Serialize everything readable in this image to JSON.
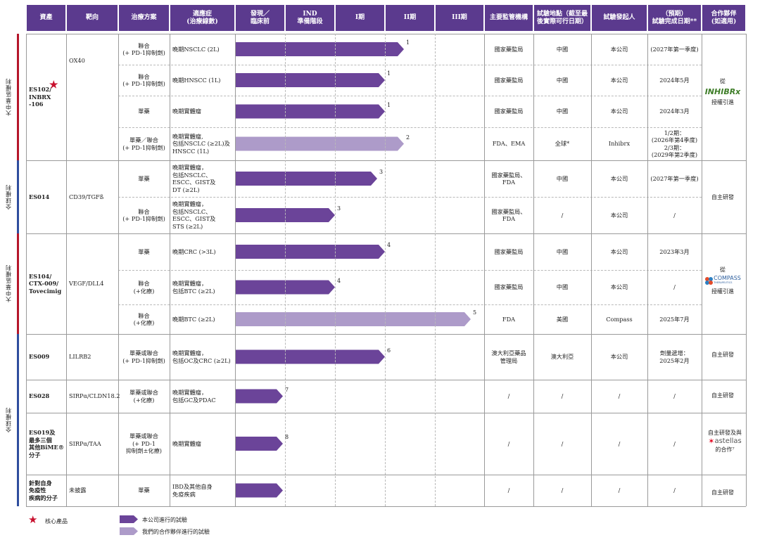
{
  "headers": [
    "資產",
    "靶向",
    "治療方案",
    "適應症\n(治療線數)",
    "發現／\n臨床前",
    "IND\n準備階段",
    "I期",
    "II期",
    "III期",
    "主要監管機構",
    "試驗地點（截至最\n後實際可行日期）",
    "試驗發起人",
    "（預期）\n試驗完成日期**",
    "合作夥伴\n(如適用)"
  ],
  "region_labels": [
    "大中華區權利",
    "全球權利",
    "大中華區權利",
    "全球權利"
  ],
  "assets": [
    {
      "name": "ES102/\nINBRX\n-106",
      "target": "OX40",
      "core": true
    },
    {
      "name": "ES014",
      "target": "CD39/TGFß",
      "core": false
    },
    {
      "name": "ES104/\nCTX-009/\nTovecimig",
      "target": "VEGF/DLL4",
      "core": false
    },
    {
      "name": "ES009",
      "target": "LILRB2",
      "core": false
    },
    {
      "name": "ES028",
      "target": "SIRPα/CLDN18.2",
      "core": false
    },
    {
      "name": "ES019及\n最多三個\n其他BiME®\n分子",
      "target": "SIRPα/TAA",
      "core": false
    },
    {
      "name": "針對自身\n免疫性\n疾病的分子",
      "target": "未披露",
      "core": false
    }
  ],
  "rows": [
    {
      "regimen": "聯合\n(+ PD-1抑制劑)",
      "indication": "晚期NSCLC (2L)",
      "note": "1",
      "regulator": "國家藥監局",
      "location": "中國",
      "sponsor": "本公司",
      "completion": "(2027年第一季度)"
    },
    {
      "regimen": "聯合\n(+ PD-1抑制劑)",
      "indication": "晚期HNSCC (1L)",
      "note": "1",
      "regulator": "國家藥監局",
      "location": "中國",
      "sponsor": "本公司",
      "completion": "2024年5月"
    },
    {
      "regimen": "單藥",
      "indication": "晚期實體瘤",
      "note": "1",
      "regulator": "國家藥監局",
      "location": "中國",
      "sponsor": "本公司",
      "completion": "2024年3月"
    },
    {
      "regimen": "單藥／聯合\n(+ PD-1抑制劑)",
      "indication": "晚期實體瘤,\n包括NSCLC (≥2L)及\nHNSCC (1L)",
      "note": "2",
      "regulator": "FDA、EMA",
      "location": "全球*",
      "sponsor": "Inhibrx",
      "completion": "1/2期：\n(2026年第4季度)\n2/3期：\n(2029年第2季度)"
    },
    {
      "regimen": "單藥",
      "indication": "晚期實體瘤，\n包括NSCLC、\nESCC、GIST及\nDT (≥2L)",
      "note": "3",
      "regulator": "國家藥監局、\nFDA",
      "location": "中國",
      "sponsor": "本公司",
      "completion": "(2027年第一季度)"
    },
    {
      "regimen": "聯合\n(+ PD-1抑制劑)",
      "indication": "晚期實體瘤，\n包括NSCLC、\nESCC、GIST及\nSTS (≥2L)",
      "note": "3",
      "regulator": "國家藥監局、\nFDA",
      "location": "/",
      "sponsor": "本公司",
      "completion": "/"
    },
    {
      "regimen": "單藥",
      "indication": "晚期CRC (>3L)",
      "note": "4",
      "regulator": "國家藥監局",
      "location": "中國",
      "sponsor": "本公司",
      "completion": "2023年3月"
    },
    {
      "regimen": "聯合\n(+化療)",
      "indication": "晚期實體瘤，\n包括BTC (≥2L)",
      "note": "4",
      "regulator": "國家藥監局",
      "location": "中國",
      "sponsor": "本公司",
      "completion": "/"
    },
    {
      "regimen": "聯合\n(+化療)",
      "indication": "晚期BTC (≥2L)",
      "note": "5",
      "regulator": "FDA",
      "location": "美國",
      "sponsor": "Compass",
      "completion": "2025年7月"
    },
    {
      "regimen": "單藥或聯合\n(+ PD-1抑制劑)",
      "indication": "晚期實體瘤，\n包括OC及CRC (≥2L)",
      "note": "6",
      "regulator": "澳大利亞藥品\n管理局",
      "location": "澳大利亞",
      "sponsor": "本公司",
      "completion": "劑量遞增：\n2025年2月"
    },
    {
      "regimen": "單藥或聯合\n(+化療)",
      "indication": "晚期實體瘤，\n包括GC及PDAC",
      "note": "7",
      "regulator": "/",
      "location": "/",
      "sponsor": "/",
      "completion": "/"
    },
    {
      "regimen": "單藥或聯合\n(+ PD-1\n抑制劑±化療)",
      "indication": "晚期實體瘤",
      "note": "8",
      "regulator": "/",
      "location": "/",
      "sponsor": "/",
      "completion": "/"
    },
    {
      "regimen": "單藥",
      "indication": "IBD及其他自身\n免疫疾病",
      "note": "",
      "regulator": "/",
      "location": "/",
      "sponsor": "/",
      "completion": "/"
    }
  ],
  "partners": {
    "inhibrx": {
      "prefix": "從",
      "logo": "INHIBRx",
      "suffix": "授權引進"
    },
    "es014": "自主研發",
    "compass": {
      "prefix": "從",
      "logo": "COMPASS",
      "logo_sub": "THERAPEUTICS",
      "suffix": "授權引進"
    },
    "es009": "自主研發",
    "es028": "自主研發",
    "astellas": {
      "prefix": "自主研發及與",
      "logo": "astellas",
      "suffix": "的合作⁷"
    },
    "autoimmune": "自主研發"
  },
  "legend": {
    "core": "核心產品",
    "company_trial": "本公司進行的試驗",
    "partner_trial": "我們的合作夥伴進行的試驗"
  },
  "colors": {
    "header": "#5b3a8e",
    "bar_company": "#6b4499",
    "bar_partner": "#ad9bc9",
    "region_red": "#b5162a",
    "region_blue": "#2f4d9e",
    "star": "#c8102e",
    "inhibrx_logo": "#3e7d28",
    "astellas_logo": "#e3001b"
  }
}
